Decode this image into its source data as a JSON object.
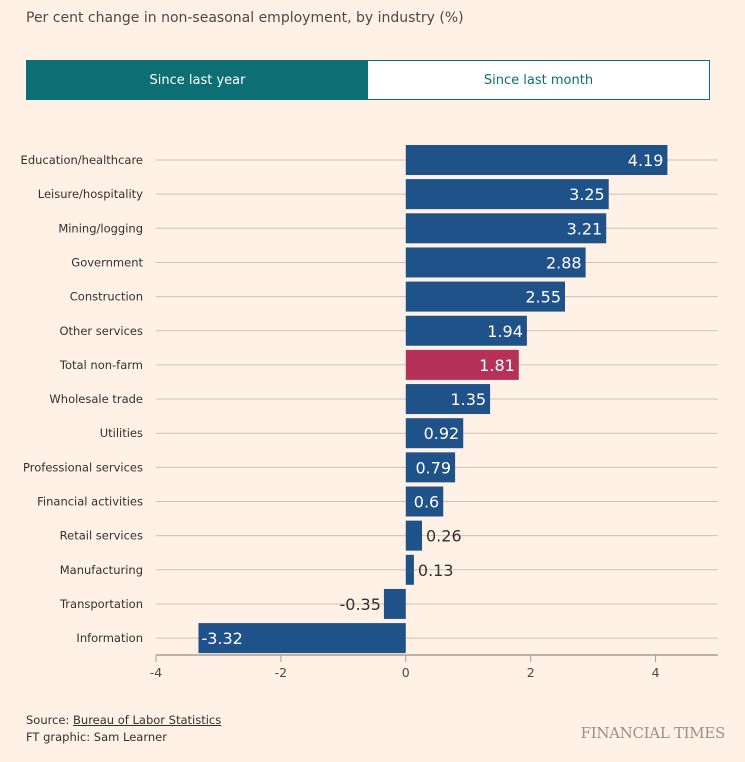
{
  "subtitle": "Per cent change in non-seasonal employment, by industry (%)",
  "toggle": {
    "active": "Since last year",
    "inactive": "Since last month"
  },
  "chart_data": {
    "type": "bar",
    "orientation": "horizontal",
    "categories": [
      "Education/healthcare",
      "Leisure/hospitality",
      "Mining/logging",
      "Government",
      "Construction",
      "Other services",
      "Total non-farm",
      "Wholesale trade",
      "Utilities",
      "Professional services",
      "Financial activities",
      "Retail services",
      "Manufacturing",
      "Transportation",
      "Information"
    ],
    "values": [
      4.19,
      3.25,
      3.21,
      2.88,
      2.55,
      1.94,
      1.81,
      1.35,
      0.92,
      0.79,
      0.6,
      0.26,
      0.13,
      -0.35,
      -3.32
    ],
    "value_labels": [
      "4.19",
      "3.25",
      "3.21",
      "2.88",
      "2.55",
      "1.94",
      "1.81",
      "1.35",
      "0.92",
      "0.79",
      "0.6",
      "0.26",
      "0.13",
      "-0.35",
      "-3.32"
    ],
    "highlight": "Total non-farm",
    "xlim": [
      -4,
      5
    ],
    "xticks": [
      "-4",
      "-2",
      "0",
      "2",
      "4"
    ],
    "xtick_values": [
      -4,
      -2,
      0,
      2,
      4
    ],
    "grid": true,
    "colors": {
      "bar": "#1f5289",
      "highlight": "#b5315a",
      "background": "#fff1e5"
    }
  },
  "footer": {
    "source_prefix": "Source: ",
    "source_link": "Bureau of Labor Statistics",
    "credit": "FT graphic: Sam Learner",
    "logo": "FINANCIAL TIMES"
  }
}
